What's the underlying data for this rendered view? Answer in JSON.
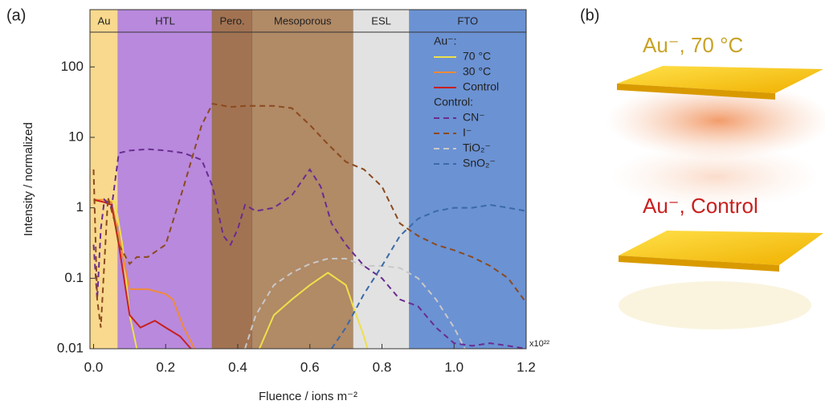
{
  "chart_data": {
    "type": "line",
    "panel_labels": [
      "(a)",
      "(b)"
    ],
    "xlabel": "Fluence / ions m⁻²",
    "x_multiplier": "x10²²",
    "ylabel": "Intensity / normalized",
    "log_y": true,
    "xlim": [
      -0.01,
      1.2
    ],
    "ylim": [
      0.01,
      650
    ],
    "xticks": [
      {
        "value": 0,
        "label": "0.0"
      },
      0.2,
      0.4,
      0.6,
      0.8,
      {
        "value": 1,
        "label": "1.0"
      },
      1.2
    ],
    "yticks": [
      0.01,
      0.1,
      1,
      10,
      100
    ],
    "regions": [
      {
        "label": "Au",
        "start": -0.01,
        "end": 0.068,
        "color": "#f8d98e"
      },
      {
        "label": "HTL",
        "start": 0.068,
        "end": 0.329,
        "color": "#b889dd"
      },
      {
        "label": "Pero.",
        "start": 0.329,
        "end": 0.44,
        "color": "#a27352"
      },
      {
        "label": "Mesoporous",
        "start": 0.44,
        "end": 0.72,
        "color": "#b18a66"
      },
      {
        "label": "ESL",
        "start": 0.72,
        "end": 0.876,
        "color": "#e2e2e2"
      },
      {
        "label": "FTO",
        "start": 0.876,
        "end": 1.2,
        "color": "#6b92d3"
      }
    ],
    "legend_groups": [
      "Au⁻:",
      "Control:"
    ],
    "series": [
      {
        "name": "70 °C",
        "color": "#eee04a",
        "dash": false,
        "x": [
          0,
          0.02,
          0.04,
          0.06,
          0.08,
          0.1,
          0.12,
          null,
          0.46,
          0.5,
          0.55,
          0.6,
          0.65,
          0.7,
          0.72,
          0.75,
          0.76
        ],
        "values": [
          1.2,
          1.3,
          1.3,
          1.2,
          0.3,
          0.03,
          0.01,
          null,
          0.01,
          0.03,
          0.05,
          0.08,
          0.12,
          0.08,
          0.04,
          0.015,
          0.01
        ]
      },
      {
        "name": "30 °C",
        "color": "#f08a3a",
        "dash": false,
        "x": [
          0,
          0.03,
          0.05,
          0.07,
          0.1,
          0.15,
          0.2,
          0.22,
          0.25,
          0.28
        ],
        "values": [
          1.3,
          1.3,
          1.2,
          0.4,
          0.07,
          0.07,
          0.06,
          0.05,
          0.02,
          0.01
        ]
      },
      {
        "name": "Control",
        "color": "#c8201e",
        "dash": false,
        "x": [
          0,
          0.03,
          0.05,
          0.07,
          0.1,
          0.13,
          0.17,
          0.2,
          0.24,
          0.27
        ],
        "values": [
          1.3,
          1.2,
          1.1,
          0.3,
          0.03,
          0.02,
          0.025,
          0.02,
          0.015,
          0.01
        ]
      },
      {
        "name": "CN⁻",
        "color": "#6a2c91",
        "dash": true,
        "x": [
          0,
          0.01,
          0.02,
          0.03,
          0.05,
          0.07,
          0.1,
          0.15,
          0.2,
          0.25,
          0.3,
          0.33,
          0.36,
          0.38,
          0.4,
          0.42,
          0.45,
          0.5,
          0.55,
          0.6,
          0.63,
          0.66,
          0.7,
          0.75,
          0.8,
          0.85,
          0.9,
          0.95,
          1.0,
          1.05,
          1.1,
          1.15,
          1.2
        ],
        "values": [
          0.3,
          0.05,
          0.5,
          1.3,
          1,
          6,
          6.5,
          6.8,
          6.5,
          6,
          4.8,
          2,
          0.4,
          0.3,
          0.5,
          1.1,
          0.9,
          1,
          1.5,
          3.5,
          2,
          0.6,
          0.3,
          0.15,
          0.1,
          0.05,
          0.04,
          0.02,
          0.012,
          0.011,
          0.012,
          0.011,
          0.01
        ]
      },
      {
        "name": "I⁻",
        "color": "#8b4a1e",
        "dash": true,
        "x": [
          0,
          0.01,
          0.02,
          0.04,
          0.06,
          0.07,
          0.1,
          0.12,
          0.15,
          0.2,
          0.25,
          0.3,
          0.33,
          0.38,
          0.42,
          0.5,
          0.55,
          0.6,
          0.65,
          0.7,
          0.75,
          0.8,
          0.85,
          0.9,
          0.95,
          1.0,
          1.05,
          1.1,
          1.15,
          1.2
        ],
        "values": [
          3.5,
          0.05,
          0.02,
          1.4,
          0.6,
          0.3,
          0.16,
          0.2,
          0.2,
          0.3,
          2,
          15,
          30,
          27,
          28,
          28,
          26,
          15,
          8,
          4.5,
          3.5,
          2,
          0.6,
          0.4,
          0.3,
          0.25,
          0.2,
          0.15,
          0.1,
          0.045
        ]
      },
      {
        "name": "TiO₂⁻",
        "color": "#c8c8c8",
        "dash": true,
        "x": [
          0.42,
          0.45,
          0.5,
          0.55,
          0.6,
          0.65,
          0.7,
          0.75,
          0.8,
          0.85,
          0.9,
          0.95,
          1.0,
          1.03
        ],
        "values": [
          0.01,
          0.03,
          0.08,
          0.12,
          0.16,
          0.19,
          0.19,
          0.15,
          0.15,
          0.14,
          0.1,
          0.05,
          0.02,
          0.01
        ]
      },
      {
        "name": "SnO₂⁻",
        "color": "#3a6aa8",
        "dash": true,
        "x": [
          0.66,
          0.7,
          0.75,
          0.8,
          0.85,
          0.9,
          0.95,
          1.0,
          1.05,
          1.1,
          1.15,
          1.2
        ],
        "values": [
          0.01,
          0.02,
          0.06,
          0.15,
          0.4,
          0.7,
          0.9,
          1,
          1,
          1.1,
          1,
          0.9
        ]
      }
    ],
    "panel_b_labels": [
      "Au⁻, 70 °C",
      "Au⁻, Control"
    ]
  }
}
